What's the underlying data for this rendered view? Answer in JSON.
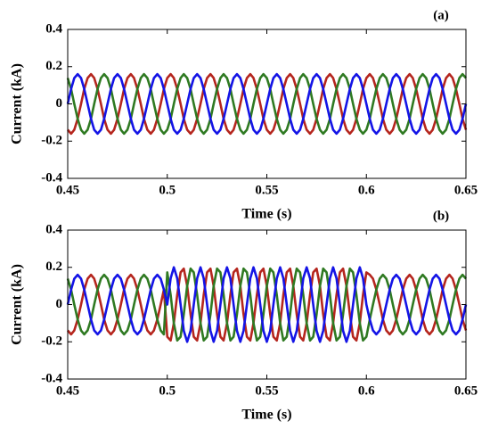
{
  "chart_data": [
    {
      "type": "line",
      "title": "(a)",
      "xlabel": "Time (s)",
      "ylabel": "Current (kA)",
      "xlim": [
        0.45,
        0.65
      ],
      "xticks": [
        0.45,
        0.5,
        0.55,
        0.6,
        0.65
      ],
      "ylim": [
        -0.4,
        0.4
      ],
      "yticks": [
        -0.4,
        -0.2,
        0,
        0.2,
        0.4
      ],
      "x": [
        0.45,
        0.4517,
        0.4533,
        0.455,
        0.4567,
        0.4583,
        0.46,
        0.4617,
        0.4633,
        0.465,
        0.4667,
        0.4683,
        0.47,
        0.4717,
        0.4733,
        0.475,
        0.4767,
        0.4783,
        0.48,
        0.4817,
        0.4833,
        0.485,
        0.4867,
        0.4883,
        0.49,
        0.4917,
        0.4933,
        0.495,
        0.4967,
        0.4983,
        0.5,
        0.5017,
        0.5033,
        0.505,
        0.5067,
        0.5083,
        0.51,
        0.5117,
        0.5133,
        0.515,
        0.5167,
        0.5183,
        0.52,
        0.5217,
        0.5233,
        0.525,
        0.5267,
        0.5283,
        0.53,
        0.5317,
        0.5333,
        0.535,
        0.5367,
        0.5383,
        0.54,
        0.5417,
        0.5433,
        0.545,
        0.5467,
        0.5483,
        0.55,
        0.5517,
        0.5533,
        0.555,
        0.5567,
        0.5583,
        0.56,
        0.5617,
        0.5633,
        0.565,
        0.5667,
        0.5683,
        0.57,
        0.5717,
        0.5733,
        0.575,
        0.5767,
        0.5783,
        0.58,
        0.5817,
        0.5833,
        0.585,
        0.5867,
        0.5883,
        0.59,
        0.5917,
        0.5933,
        0.595,
        0.5967,
        0.5983,
        0.6,
        0.6017,
        0.6033,
        0.605,
        0.6067,
        0.6083,
        0.61,
        0.6117,
        0.6133,
        0.615,
        0.6167,
        0.6183,
        0.62,
        0.6217,
        0.6233,
        0.625,
        0.6267,
        0.6283,
        0.63,
        0.6317,
        0.6333,
        0.635,
        0.6367,
        0.6383,
        0.64,
        0.6417,
        0.6433,
        0.645,
        0.6467,
        0.6483,
        0.65
      ],
      "series": [
        {
          "color": "#b5261e",
          "values": [
            -0.139,
            -0.16,
            -0.139,
            -0.08,
            0,
            0.08,
            0.139,
            0.16,
            0.139,
            0.08,
            0,
            -0.08,
            -0.139,
            -0.16,
            -0.139,
            -0.08,
            0,
            0.08,
            0.139,
            0.16,
            0.139,
            0.08,
            0,
            -0.08,
            -0.139,
            -0.16,
            -0.139,
            -0.08,
            0,
            0.08,
            0.139,
            0.16,
            0.139,
            0.08,
            0,
            -0.08,
            -0.139,
            -0.16,
            -0.139,
            -0.08,
            0,
            0.08,
            0.139,
            0.16,
            0.139,
            0.08,
            0,
            -0.08,
            -0.139,
            -0.16,
            -0.139,
            -0.08,
            0,
            0.08,
            0.139,
            0.16,
            0.139,
            0.08,
            0,
            -0.08,
            -0.139,
            -0.16,
            -0.139,
            -0.08,
            0,
            0.08,
            0.139,
            0.16,
            0.139,
            0.08,
            0,
            -0.08,
            -0.139,
            -0.16,
            -0.139,
            -0.08,
            0,
            0.08,
            0.139,
            0.16,
            0.139,
            0.08,
            0,
            -0.08,
            -0.139,
            -0.16,
            -0.139,
            -0.08,
            0,
            0.08,
            0.139,
            0.16,
            0.139,
            0.08,
            0,
            -0.08,
            -0.139,
            -0.16,
            -0.139,
            -0.08,
            0,
            0.08,
            0.139,
            0.16,
            0.139,
            0.08,
            0,
            -0.08,
            -0.139,
            -0.16,
            -0.139,
            -0.08,
            0,
            0.08,
            0.139,
            0.16,
            0.139,
            0.08,
            0,
            -0.08,
            -0.139
          ]
        },
        {
          "color": "#2f7a22",
          "values": [
            0.139,
            0.08,
            0,
            -0.08,
            -0.139,
            -0.16,
            -0.139,
            -0.08,
            0,
            0.08,
            0.139,
            0.16,
            0.139,
            0.08,
            0,
            -0.08,
            -0.139,
            -0.16,
            -0.139,
            -0.08,
            0,
            0.08,
            0.139,
            0.16,
            0.139,
            0.08,
            0,
            -0.08,
            -0.139,
            -0.16,
            -0.139,
            -0.08,
            0,
            0.08,
            0.139,
            0.16,
            0.139,
            0.08,
            0,
            -0.08,
            -0.139,
            -0.16,
            -0.139,
            -0.08,
            0,
            0.08,
            0.139,
            0.16,
            0.139,
            0.08,
            0,
            -0.08,
            -0.139,
            -0.16,
            -0.139,
            -0.08,
            0,
            0.08,
            0.139,
            0.16,
            0.139,
            0.08,
            0,
            -0.08,
            -0.139,
            -0.16,
            -0.139,
            -0.08,
            0,
            0.08,
            0.139,
            0.16,
            0.139,
            0.08,
            0,
            -0.08,
            -0.139,
            -0.16,
            -0.139,
            -0.08,
            0,
            0.08,
            0.139,
            0.16,
            0.139,
            0.08,
            0,
            -0.08,
            -0.139,
            -0.16,
            -0.139,
            -0.08,
            0,
            0.08,
            0.139,
            0.16,
            0.139,
            0.08,
            0,
            -0.08,
            -0.139,
            -0.16,
            -0.139,
            -0.08,
            0,
            0.08,
            0.139,
            0.16,
            0.139,
            0.08,
            0,
            -0.08,
            -0.139,
            -0.16,
            -0.139,
            -0.08,
            0,
            0.08,
            0.139,
            0.16,
            0.139
          ]
        },
        {
          "color": "#1414e6",
          "values": [
            0,
            0.08,
            0.139,
            0.16,
            0.139,
            0.08,
            0,
            -0.08,
            -0.139,
            -0.16,
            -0.139,
            -0.08,
            0,
            0.08,
            0.139,
            0.16,
            0.139,
            0.08,
            0,
            -0.08,
            -0.139,
            -0.16,
            -0.139,
            -0.08,
            0,
            0.08,
            0.139,
            0.16,
            0.139,
            0.08,
            0,
            -0.08,
            -0.139,
            -0.16,
            -0.139,
            -0.08,
            0,
            0.08,
            0.139,
            0.16,
            0.139,
            0.08,
            0,
            -0.08,
            -0.139,
            -0.16,
            -0.139,
            -0.08,
            0,
            0.08,
            0.139,
            0.16,
            0.139,
            0.08,
            0,
            -0.08,
            -0.139,
            -0.16,
            -0.139,
            -0.08,
            0,
            0.08,
            0.139,
            0.16,
            0.139,
            0.08,
            0,
            -0.08,
            -0.139,
            -0.16,
            -0.139,
            -0.08,
            0,
            0.08,
            0.139,
            0.16,
            0.139,
            0.08,
            0,
            -0.08,
            -0.139,
            -0.16,
            -0.139,
            -0.08,
            0,
            0.08,
            0.139,
            0.16,
            0.139,
            0.08,
            0,
            -0.08,
            -0.139,
            -0.16,
            -0.139,
            -0.08,
            0,
            0.08,
            0.139,
            0.16,
            0.139,
            0.08,
            0,
            -0.08,
            -0.139,
            -0.16,
            -0.139,
            -0.08,
            0,
            0.08,
            0.139,
            0.16,
            0.139,
            0.08,
            0,
            -0.08,
            -0.139,
            -0.16,
            -0.139,
            -0.08,
            0
          ]
        }
      ]
    },
    {
      "type": "line",
      "title": "(b)",
      "xlabel": "Time (s)",
      "ylabel": "Current (kA)",
      "xlim": [
        0.45,
        0.65
      ],
      "xticks": [
        0.45,
        0.5,
        0.55,
        0.6,
        0.65
      ],
      "ylim": [
        -0.4,
        0.4
      ],
      "yticks": [
        -0.4,
        -0.2,
        0,
        0.2,
        0.4
      ],
      "x": [
        0.45,
        0.4517,
        0.4533,
        0.455,
        0.4567,
        0.4583,
        0.46,
        0.4617,
        0.4633,
        0.465,
        0.4667,
        0.4683,
        0.47,
        0.4717,
        0.4733,
        0.475,
        0.4767,
        0.4783,
        0.48,
        0.4817,
        0.4833,
        0.485,
        0.4867,
        0.4883,
        0.49,
        0.4917,
        0.4933,
        0.495,
        0.4967,
        0.4983,
        0.5,
        0.5017,
        0.5033,
        0.505,
        0.5067,
        0.5083,
        0.51,
        0.5117,
        0.5133,
        0.515,
        0.5167,
        0.5183,
        0.52,
        0.5217,
        0.5233,
        0.525,
        0.5267,
        0.5283,
        0.53,
        0.5317,
        0.5333,
        0.535,
        0.5367,
        0.5383,
        0.54,
        0.5417,
        0.5433,
        0.545,
        0.5467,
        0.5483,
        0.55,
        0.5517,
        0.5533,
        0.555,
        0.5567,
        0.5583,
        0.56,
        0.5617,
        0.5633,
        0.565,
        0.5667,
        0.5683,
        0.57,
        0.5717,
        0.5733,
        0.575,
        0.5767,
        0.5783,
        0.58,
        0.5817,
        0.5833,
        0.585,
        0.5867,
        0.5883,
        0.59,
        0.5917,
        0.5933,
        0.595,
        0.5967,
        0.5983,
        0.6,
        0.6017,
        0.6033,
        0.605,
        0.6067,
        0.6083,
        0.61,
        0.6117,
        0.6133,
        0.615,
        0.6167,
        0.6183,
        0.62,
        0.6217,
        0.6233,
        0.625,
        0.6267,
        0.6283,
        0.63,
        0.6317,
        0.6333,
        0.635,
        0.6367,
        0.6383,
        0.64,
        0.6417,
        0.6433,
        0.645,
        0.6467,
        0.6483,
        0.65
      ],
      "series": [
        {
          "color": "#b5261e",
          "values": [
            -0.139,
            -0.16,
            -0.139,
            -0.08,
            0,
            0.08,
            0.139,
            0.16,
            0.139,
            0.08,
            0,
            -0.08,
            -0.139,
            -0.16,
            -0.139,
            -0.08,
            0,
            0.08,
            0.139,
            0.16,
            0.139,
            0.08,
            0,
            -0.08,
            -0.139,
            -0.16,
            -0.139,
            -0.08,
            0,
            0.08,
            -0.173,
            -0.193,
            -0.1,
            0.052,
            0.173,
            0.193,
            0.1,
            -0.052,
            -0.173,
            -0.193,
            -0.1,
            0.052,
            0.173,
            0.193,
            0.1,
            -0.052,
            -0.173,
            -0.193,
            -0.1,
            0.052,
            0.173,
            0.193,
            0.1,
            -0.052,
            -0.173,
            -0.193,
            -0.1,
            0.052,
            0.173,
            0.193,
            0.1,
            -0.052,
            -0.173,
            -0.193,
            -0.1,
            0.052,
            0.173,
            0.193,
            0.1,
            -0.052,
            -0.173,
            -0.193,
            -0.1,
            0.052,
            0.173,
            0.193,
            0.1,
            -0.052,
            -0.173,
            -0.193,
            -0.1,
            0.052,
            0.173,
            0.193,
            0.1,
            -0.052,
            -0.173,
            -0.193,
            -0.1,
            0.052,
            0.173,
            0.16,
            0.139,
            0.08,
            0,
            -0.08,
            -0.139,
            -0.16,
            -0.139,
            -0.08,
            0,
            0.08,
            0.139,
            0.16,
            0.139,
            0.08,
            0,
            -0.08,
            -0.139,
            -0.16,
            -0.139,
            -0.08,
            0,
            0.08,
            0.139,
            0.16,
            0.139,
            0.08,
            0,
            -0.08,
            -0.139
          ]
        },
        {
          "color": "#2f7a22",
          "values": [
            0.139,
            0.08,
            0,
            -0.08,
            -0.139,
            -0.16,
            -0.139,
            -0.08,
            0,
            0.08,
            0.139,
            0.16,
            0.139,
            0.08,
            0,
            -0.08,
            -0.139,
            -0.16,
            -0.139,
            -0.08,
            0,
            0.08,
            0.139,
            0.16,
            0.139,
            0.08,
            0,
            -0.08,
            -0.139,
            -0.16,
            0.173,
            0.052,
            -0.1,
            -0.193,
            -0.173,
            -0.052,
            0.1,
            0.193,
            0.173,
            0.052,
            -0.1,
            -0.193,
            -0.173,
            -0.052,
            0.1,
            0.193,
            0.173,
            0.052,
            -0.1,
            -0.193,
            -0.173,
            -0.052,
            0.1,
            0.193,
            0.173,
            0.052,
            -0.1,
            -0.193,
            -0.173,
            -0.052,
            0.1,
            0.193,
            0.173,
            0.052,
            -0.1,
            -0.193,
            -0.173,
            -0.052,
            0.1,
            0.193,
            0.173,
            0.052,
            -0.1,
            -0.193,
            -0.173,
            -0.052,
            0.1,
            0.193,
            0.173,
            0.052,
            -0.1,
            -0.193,
            -0.173,
            -0.052,
            0.1,
            0.193,
            0.173,
            0.052,
            -0.1,
            -0.193,
            -0.173,
            -0.08,
            0,
            0.08,
            0.139,
            0.16,
            0.139,
            0.08,
            0,
            -0.08,
            -0.139,
            -0.16,
            -0.139,
            -0.08,
            0,
            0.08,
            0.139,
            0.16,
            0.139,
            0.08,
            0,
            -0.08,
            -0.139,
            -0.16,
            -0.139,
            -0.08,
            0,
            0.08,
            0.139,
            0.16,
            0.139
          ]
        },
        {
          "color": "#1414e6",
          "values": [
            0,
            0.08,
            0.139,
            0.16,
            0.139,
            0.08,
            0,
            -0.08,
            -0.139,
            -0.16,
            -0.139,
            -0.08,
            0,
            0.08,
            0.139,
            0.16,
            0.139,
            0.08,
            0,
            -0.08,
            -0.139,
            -0.16,
            -0.139,
            -0.08,
            0,
            0.08,
            0.139,
            0.16,
            0.139,
            0.08,
            0,
            0.141,
            0.2,
            0.141,
            0,
            -0.141,
            -0.2,
            -0.141,
            0,
            0.141,
            0.2,
            0.141,
            0,
            -0.141,
            -0.2,
            -0.141,
            0,
            0.141,
            0.2,
            0.141,
            0,
            -0.141,
            -0.2,
            -0.141,
            0,
            0.141,
            0.2,
            0.141,
            0,
            -0.141,
            -0.2,
            -0.141,
            0,
            0.141,
            0.2,
            0.141,
            0,
            -0.141,
            -0.2,
            -0.141,
            0,
            0.141,
            0.2,
            0.141,
            0,
            -0.141,
            -0.2,
            -0.141,
            0,
            0.141,
            0.2,
            0.141,
            0,
            -0.141,
            -0.2,
            -0.141,
            0,
            0.141,
            0.2,
            0.141,
            0,
            -0.08,
            -0.139,
            -0.16,
            -0.139,
            -0.08,
            0,
            0.08,
            0.139,
            0.16,
            0.139,
            0.08,
            0,
            -0.08,
            -0.139,
            -0.16,
            -0.139,
            -0.08,
            0,
            0.08,
            0.139,
            0.16,
            0.139,
            0.08,
            0,
            -0.08,
            -0.139,
            -0.16,
            -0.139,
            -0.08,
            0
          ]
        }
      ]
    }
  ]
}
